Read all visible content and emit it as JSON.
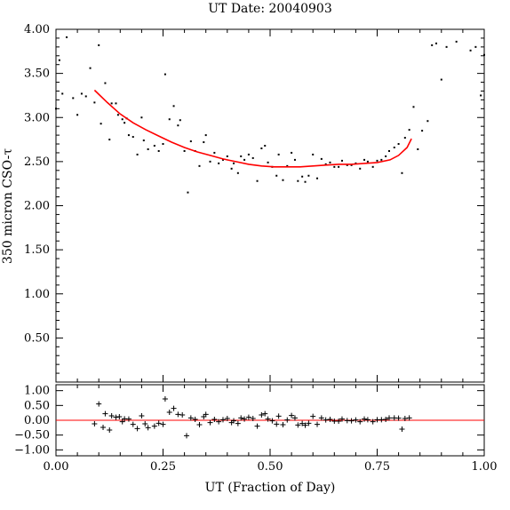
{
  "chart_data": {
    "type": "scatter",
    "title": "UT Date: 20040903",
    "xlabel": "UT (Fraction of Day)",
    "ylabel": "350 micron CSO-τ",
    "xlim": [
      0.0,
      1.0
    ],
    "x_ticks": [
      "0.00",
      "0.25",
      "0.50",
      "0.75",
      "1.00"
    ],
    "grid": false,
    "colors": {
      "points": "#000000",
      "fit": "#ff0000",
      "axes": "#000000"
    },
    "main": {
      "ylim": [
        0.0,
        4.0
      ],
      "y_ticks": [
        "0.50",
        "1.00",
        "1.50",
        "2.00",
        "2.50",
        "3.00",
        "3.50",
        "4.00"
      ],
      "series": [
        {
          "type": "scatter",
          "points": [
            [
              0.0,
              3.1
            ],
            [
              0.008,
              3.65
            ],
            [
              0.015,
              3.27
            ],
            [
              0.025,
              3.91
            ],
            [
              0.04,
              3.22
            ],
            [
              0.05,
              3.03
            ],
            [
              0.06,
              3.27
            ],
            [
              0.07,
              3.24
            ],
            [
              0.08,
              3.56
            ],
            [
              0.09,
              3.17
            ],
            [
              0.1,
              3.82
            ],
            [
              0.105,
              2.93
            ],
            [
              0.115,
              3.39
            ],
            [
              0.125,
              2.75
            ],
            [
              0.13,
              3.16
            ],
            [
              0.14,
              3.16
            ],
            [
              0.145,
              3.03
            ],
            [
              0.155,
              2.98
            ],
            [
              0.16,
              2.94
            ],
            [
              0.165,
              2.99
            ],
            [
              0.17,
              2.8
            ],
            [
              0.18,
              2.78
            ],
            [
              0.19,
              2.58
            ],
            [
              0.2,
              3.0
            ],
            [
              0.205,
              2.74
            ],
            [
              0.215,
              2.64
            ],
            [
              0.23,
              2.68
            ],
            [
              0.24,
              2.62
            ],
            [
              0.25,
              2.7
            ],
            [
              0.255,
              3.49
            ],
            [
              0.265,
              2.98
            ],
            [
              0.275,
              3.13
            ],
            [
              0.285,
              2.91
            ],
            [
              0.29,
              2.97
            ],
            [
              0.3,
              2.62
            ],
            [
              0.308,
              2.15
            ],
            [
              0.315,
              2.73
            ],
            [
              0.325,
              2.62
            ],
            [
              0.335,
              2.45
            ],
            [
              0.345,
              2.72
            ],
            [
              0.35,
              2.8
            ],
            [
              0.36,
              2.5
            ],
            [
              0.37,
              2.6
            ],
            [
              0.38,
              2.48
            ],
            [
              0.39,
              2.52
            ],
            [
              0.4,
              2.56
            ],
            [
              0.41,
              2.42
            ],
            [
              0.415,
              2.48
            ],
            [
              0.425,
              2.37
            ],
            [
              0.432,
              2.56
            ],
            [
              0.44,
              2.52
            ],
            [
              0.45,
              2.58
            ],
            [
              0.46,
              2.54
            ],
            [
              0.47,
              2.28
            ],
            [
              0.48,
              2.65
            ],
            [
              0.488,
              2.68
            ],
            [
              0.495,
              2.49
            ],
            [
              0.505,
              2.44
            ],
            [
              0.515,
              2.34
            ],
            [
              0.52,
              2.58
            ],
            [
              0.53,
              2.29
            ],
            [
              0.54,
              2.45
            ],
            [
              0.55,
              2.6
            ],
            [
              0.558,
              2.52
            ],
            [
              0.565,
              2.28
            ],
            [
              0.575,
              2.33
            ],
            [
              0.582,
              2.27
            ],
            [
              0.59,
              2.34
            ],
            [
              0.6,
              2.58
            ],
            [
              0.61,
              2.31
            ],
            [
              0.62,
              2.53
            ],
            [
              0.63,
              2.47
            ],
            [
              0.64,
              2.49
            ],
            [
              0.65,
              2.44
            ],
            [
              0.66,
              2.44
            ],
            [
              0.668,
              2.51
            ],
            [
              0.68,
              2.46
            ],
            [
              0.69,
              2.46
            ],
            [
              0.7,
              2.48
            ],
            [
              0.71,
              2.42
            ],
            [
              0.72,
              2.52
            ],
            [
              0.728,
              2.5
            ],
            [
              0.74,
              2.44
            ],
            [
              0.75,
              2.51
            ],
            [
              0.76,
              2.52
            ],
            [
              0.77,
              2.56
            ],
            [
              0.778,
              2.62
            ],
            [
              0.79,
              2.66
            ],
            [
              0.8,
              2.7
            ],
            [
              0.808,
              2.37
            ],
            [
              0.815,
              2.77
            ],
            [
              0.825,
              2.86
            ],
            [
              0.835,
              3.12
            ],
            [
              0.845,
              2.64
            ],
            [
              0.855,
              2.85
            ],
            [
              0.868,
              2.96
            ],
            [
              0.878,
              3.82
            ],
            [
              0.888,
              3.84
            ],
            [
              0.9,
              3.43
            ],
            [
              0.912,
              3.8
            ],
            [
              0.935,
              3.86
            ],
            [
              0.968,
              3.76
            ],
            [
              0.98,
              3.8
            ],
            [
              0.992,
              3.25
            ],
            [
              1.0,
              3.71
            ]
          ]
        },
        {
          "type": "line",
          "points": [
            [
              0.09,
              3.31
            ],
            [
              0.12,
              3.17
            ],
            [
              0.15,
              3.04
            ],
            [
              0.18,
              2.94
            ],
            [
              0.21,
              2.86
            ],
            [
              0.24,
              2.79
            ],
            [
              0.27,
              2.72
            ],
            [
              0.3,
              2.66
            ],
            [
              0.33,
              2.61
            ],
            [
              0.36,
              2.57
            ],
            [
              0.39,
              2.53
            ],
            [
              0.42,
              2.5
            ],
            [
              0.45,
              2.47
            ],
            [
              0.48,
              2.45
            ],
            [
              0.51,
              2.44
            ],
            [
              0.54,
              2.44
            ],
            [
              0.57,
              2.44
            ],
            [
              0.6,
              2.45
            ],
            [
              0.63,
              2.46
            ],
            [
              0.66,
              2.47
            ],
            [
              0.69,
              2.47
            ],
            [
              0.72,
              2.48
            ],
            [
              0.75,
              2.49
            ],
            [
              0.78,
              2.52
            ],
            [
              0.8,
              2.57
            ],
            [
              0.82,
              2.66
            ],
            [
              0.83,
              2.76
            ]
          ]
        }
      ]
    },
    "residuals": {
      "ylim": [
        -1.2,
        1.2
      ],
      "y_ticks": [
        "1.00",
        "0.50",
        "0.00",
        "−0.50",
        "−1.00"
      ],
      "zero_line": 0.0,
      "series": [
        {
          "type": "scatter",
          "points": [
            [
              0.09,
              -0.12
            ],
            [
              0.1,
              0.55
            ],
            [
              0.11,
              -0.24
            ],
            [
              0.115,
              0.22
            ],
            [
              0.125,
              -0.33
            ],
            [
              0.13,
              0.15
            ],
            [
              0.14,
              0.1
            ],
            [
              0.148,
              0.12
            ],
            [
              0.155,
              -0.05
            ],
            [
              0.16,
              0.05
            ],
            [
              0.17,
              0.04
            ],
            [
              0.18,
              -0.14
            ],
            [
              0.19,
              -0.28
            ],
            [
              0.2,
              0.15
            ],
            [
              0.208,
              -0.12
            ],
            [
              0.215,
              -0.25
            ],
            [
              0.23,
              -0.2
            ],
            [
              0.24,
              -0.1
            ],
            [
              0.25,
              -0.14
            ],
            [
              0.255,
              0.72
            ],
            [
              0.265,
              0.27
            ],
            [
              0.275,
              0.4
            ],
            [
              0.285,
              0.2
            ],
            [
              0.295,
              0.18
            ],
            [
              0.305,
              -0.52
            ],
            [
              0.315,
              0.08
            ],
            [
              0.325,
              0.03
            ],
            [
              0.335,
              -0.15
            ],
            [
              0.345,
              0.12
            ],
            [
              0.35,
              0.2
            ],
            [
              0.36,
              -0.08
            ],
            [
              0.37,
              0.03
            ],
            [
              0.38,
              -0.05
            ],
            [
              0.39,
              0.02
            ],
            [
              0.4,
              0.06
            ],
            [
              0.41,
              -0.08
            ],
            [
              0.415,
              -0.02
            ],
            [
              0.425,
              -0.11
            ],
            [
              0.432,
              0.08
            ],
            [
              0.44,
              0.04
            ],
            [
              0.45,
              0.1
            ],
            [
              0.46,
              0.06
            ],
            [
              0.47,
              -0.2
            ],
            [
              0.48,
              0.18
            ],
            [
              0.488,
              0.22
            ],
            [
              0.495,
              0.04
            ],
            [
              0.505,
              -0.02
            ],
            [
              0.515,
              -0.13
            ],
            [
              0.52,
              0.14
            ],
            [
              0.53,
              -0.15
            ],
            [
              0.54,
              0.01
            ],
            [
              0.55,
              0.16
            ],
            [
              0.558,
              0.08
            ],
            [
              0.565,
              -0.16
            ],
            [
              0.575,
              -0.11
            ],
            [
              0.582,
              -0.17
            ],
            [
              0.59,
              -0.1
            ],
            [
              0.6,
              0.13
            ],
            [
              0.61,
              -0.14
            ],
            [
              0.62,
              0.08
            ],
            [
              0.63,
              0.01
            ],
            [
              0.64,
              0.03
            ],
            [
              0.65,
              -0.03
            ],
            [
              0.66,
              -0.03
            ],
            [
              0.668,
              0.04
            ],
            [
              0.68,
              -0.01
            ],
            [
              0.69,
              -0.02
            ],
            [
              0.7,
              0.01
            ],
            [
              0.71,
              -0.05
            ],
            [
              0.72,
              0.04
            ],
            [
              0.728,
              0.02
            ],
            [
              0.74,
              -0.05
            ],
            [
              0.75,
              0.02
            ],
            [
              0.76,
              0.02
            ],
            [
              0.77,
              0.03
            ],
            [
              0.778,
              0.08
            ],
            [
              0.79,
              0.08
            ],
            [
              0.8,
              0.07
            ],
            [
              0.808,
              -0.3
            ],
            [
              0.815,
              0.06
            ],
            [
              0.825,
              0.08
            ]
          ]
        }
      ]
    }
  }
}
